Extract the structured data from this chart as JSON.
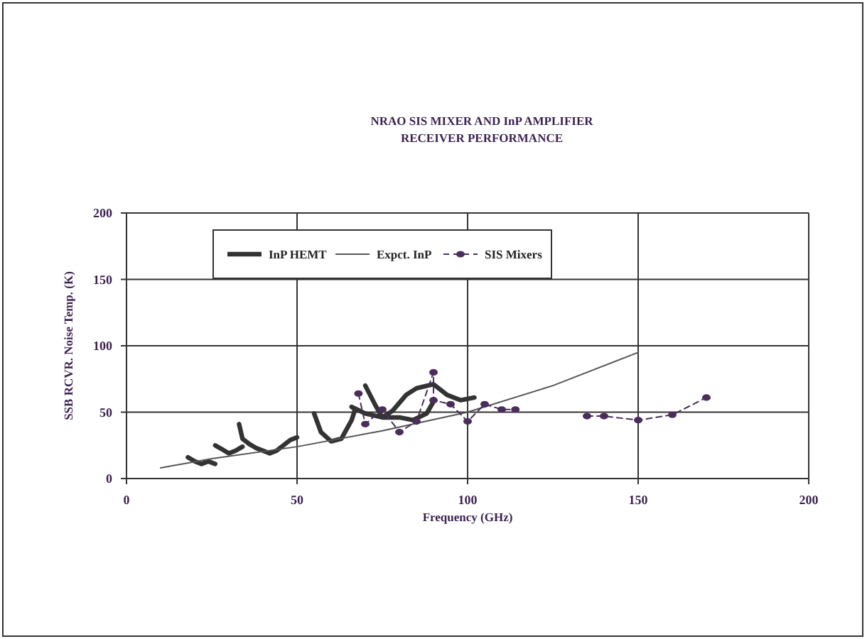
{
  "chart_data": {
    "type": "line",
    "title": "NRAO SIS MIXER AND InP AMPLIFIER\nRECEIVER PERFORMANCE",
    "xlabel": "Frequency (GHz)",
    "ylabel": "SSB RCVR. Noise Temp. (K)",
    "xlim": [
      0,
      200
    ],
    "xticks": [
      0,
      50,
      100,
      150,
      200
    ],
    "ylim": [
      0,
      200
    ],
    "yticks": [
      0,
      50,
      100,
      150,
      200
    ],
    "grid": true,
    "legend": "top",
    "series": [
      {
        "name": "InP HEMT",
        "color": "#333333",
        "line_style": "solid",
        "marker": "none",
        "x": [
          18,
          20,
          22,
          24,
          26,
          null,
          26,
          28,
          30,
          32,
          34,
          null,
          33,
          34,
          36,
          38,
          40,
          42,
          44,
          46,
          48,
          50,
          null,
          55,
          57,
          60,
          63,
          66,
          67,
          66,
          70,
          75,
          80,
          84,
          88,
          90,
          null,
          70,
          73,
          75,
          78,
          82,
          85,
          90,
          94,
          98,
          102
        ],
        "values": [
          16,
          13,
          11,
          13,
          11,
          null,
          25,
          22,
          19,
          21,
          24,
          null,
          41,
          30,
          26,
          23,
          21,
          19,
          21,
          25,
          29,
          31,
          null,
          49,
          35,
          28,
          30,
          44,
          52,
          54,
          49,
          46,
          46,
          44,
          49,
          58,
          null,
          70,
          55,
          46,
          51,
          63,
          68,
          71,
          63,
          59,
          61
        ]
      },
      {
        "name": "Expct. InP",
        "color": "#555555",
        "line_style": "solid",
        "marker": "none",
        "x": [
          10,
          25,
          50,
          75,
          100,
          125,
          150
        ],
        "values": [
          8,
          15,
          24,
          36,
          50,
          70,
          95
        ]
      },
      {
        "name": "SIS Mixers",
        "color": "#4b2d5c",
        "line_style": "dashed",
        "marker": "circle",
        "x": [
          68,
          70,
          75,
          80,
          85,
          90,
          90,
          95,
          100,
          105,
          110,
          114,
          120,
          135,
          140,
          150,
          160,
          170
        ],
        "values": [
          64,
          41,
          52,
          35,
          43,
          80,
          59,
          56,
          43,
          56,
          52,
          52,
          null,
          47,
          47,
          44,
          48,
          61
        ]
      }
    ]
  }
}
